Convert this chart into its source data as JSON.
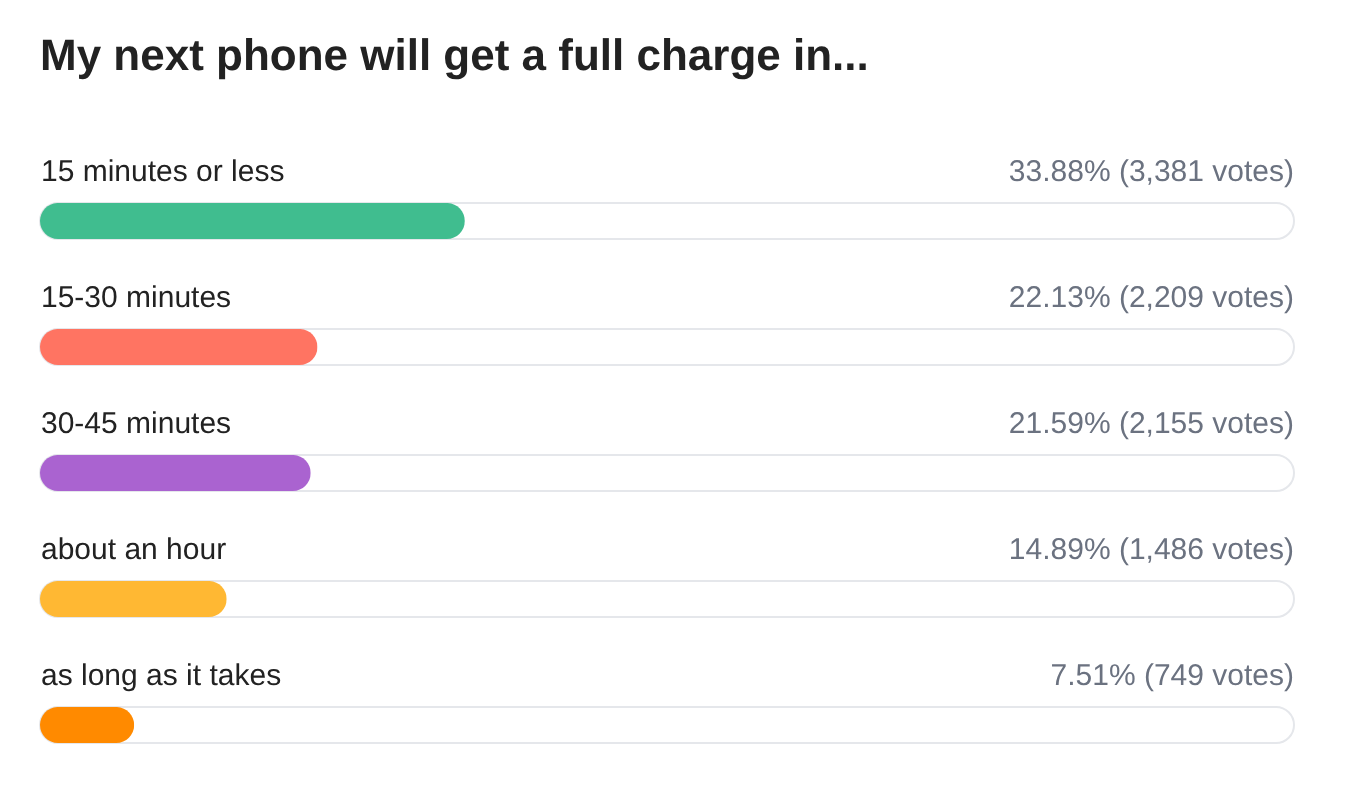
{
  "chart_data": {
    "type": "bar",
    "orientation": "horizontal",
    "title": "My next phone will get a full charge in...",
    "categories": [
      "15 minutes or less",
      "15-30 minutes",
      "30-45 minutes",
      "about an hour",
      "as long as it takes"
    ],
    "values": [
      33.88,
      22.13,
      21.59,
      14.89,
      7.51
    ],
    "colors": [
      "#40bd8f",
      "#ff7462",
      "#aa63d0",
      "#ffb833",
      "#ff8a00"
    ],
    "value_labels": [
      "33.88% (3,381 votes)",
      "22.13% (2,209 votes)",
      "21.59% (2,155 votes)",
      "14.89% (1,486 votes)",
      "7.51% (749 votes)"
    ],
    "xlim": [
      0,
      100
    ],
    "tick_labels": "y"
  }
}
